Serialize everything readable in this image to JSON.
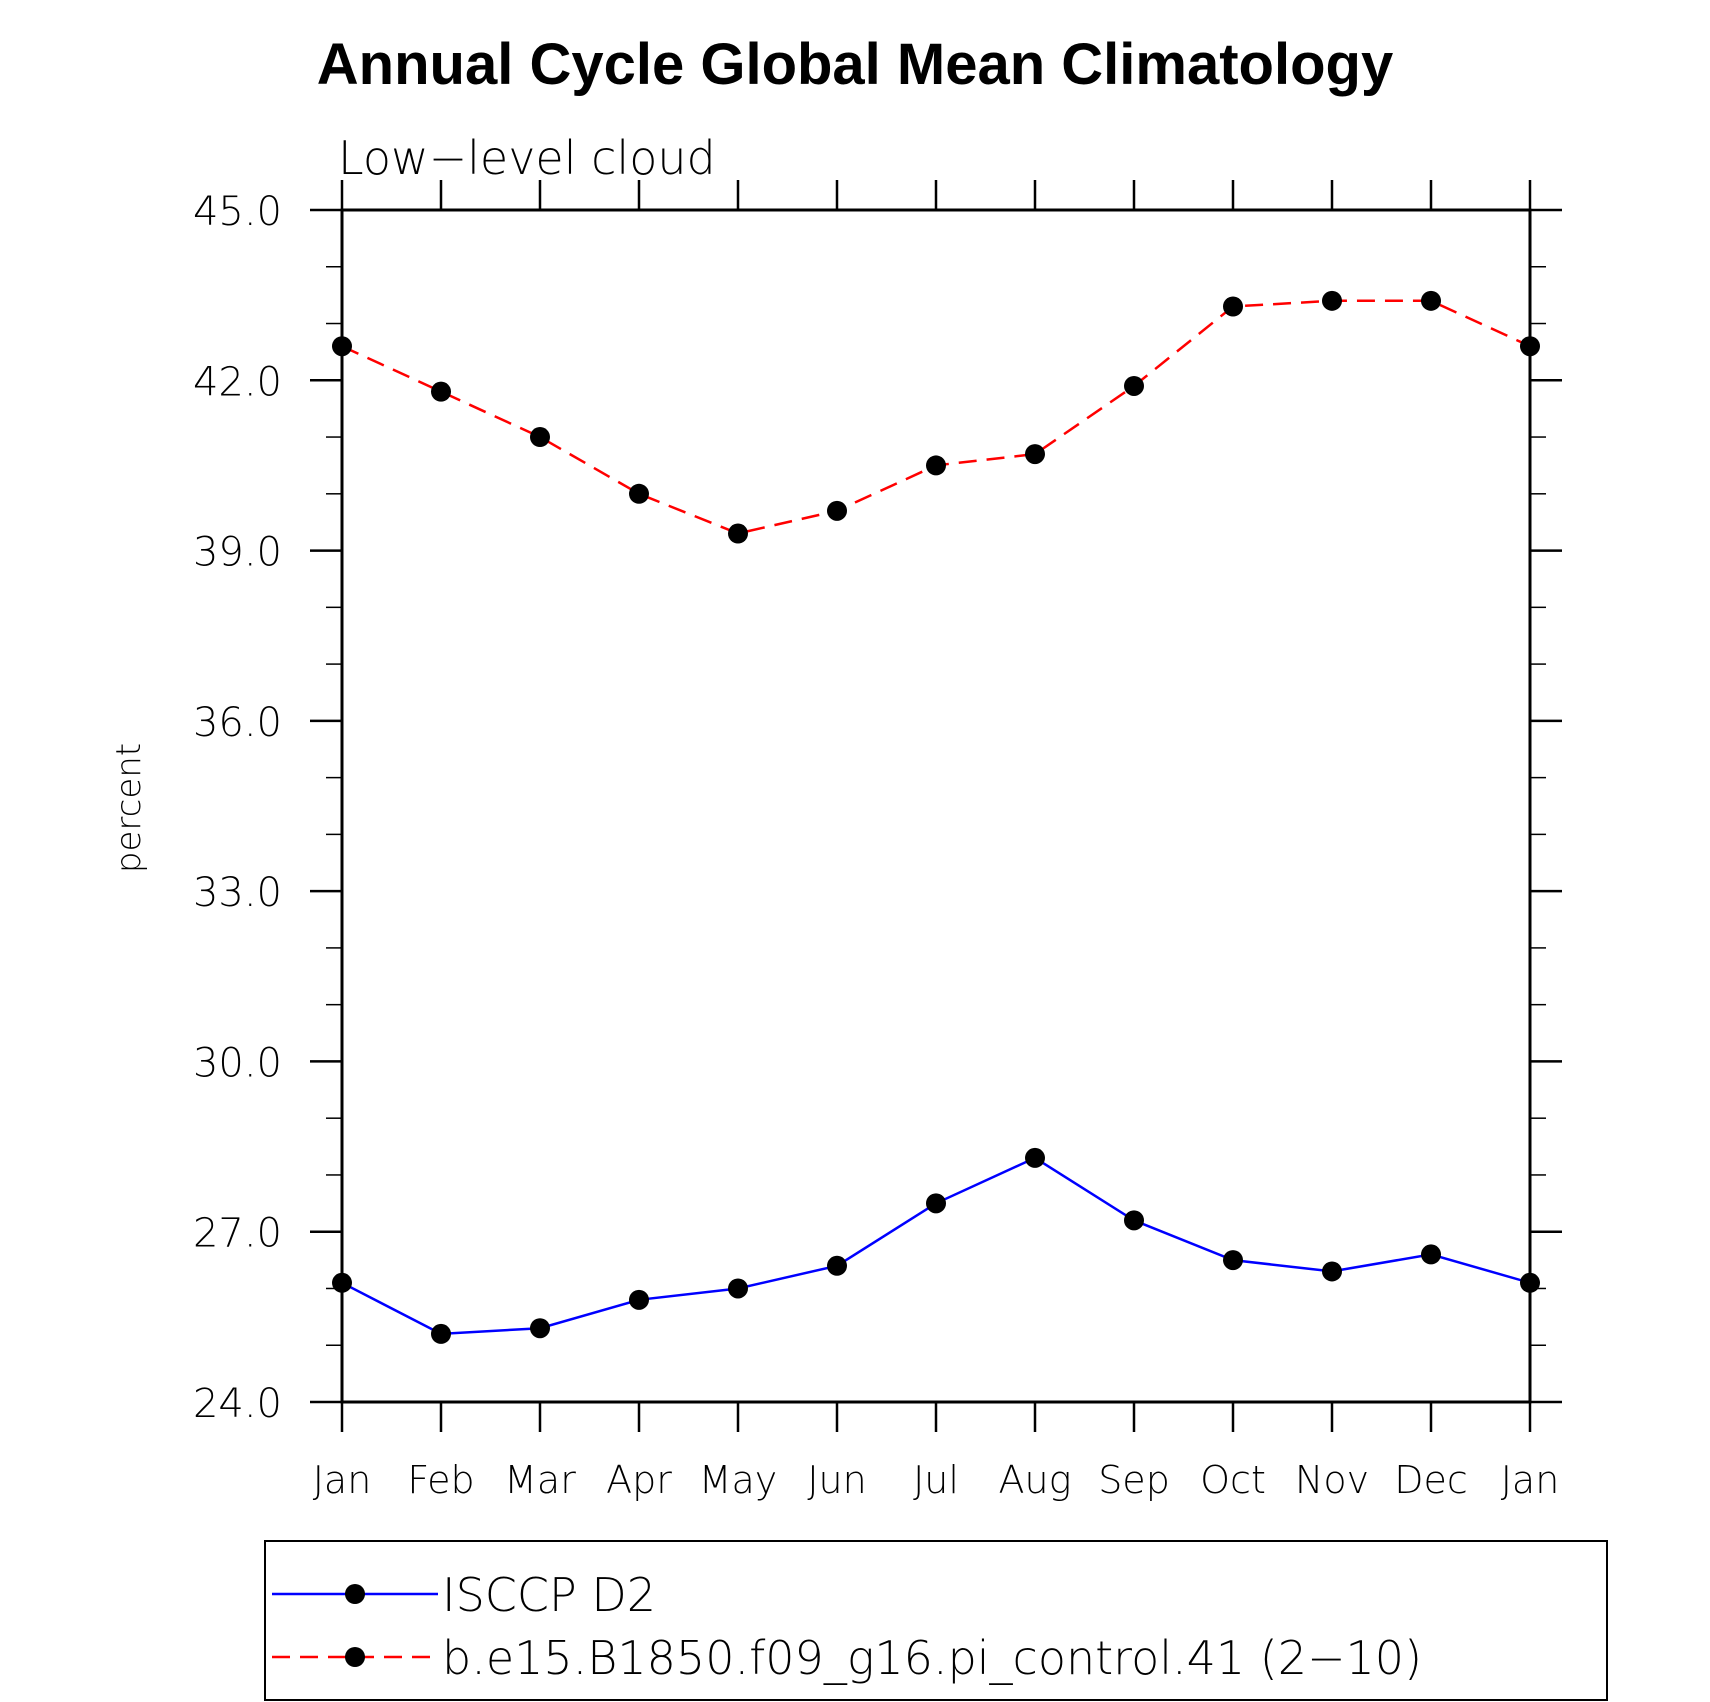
{
  "chart_data": {
    "type": "line",
    "title": "Annual Cycle Global Mean Climatology",
    "subtitle": "Low−level cloud",
    "xlabel": "",
    "ylabel": "percent",
    "categories": [
      "Jan",
      "Feb",
      "Mar",
      "Apr",
      "May",
      "Jun",
      "Jul",
      "Aug",
      "Sep",
      "Oct",
      "Nov",
      "Dec",
      "Jan"
    ],
    "ylim": [
      24.0,
      45.0
    ],
    "yticks": [
      "24.0",
      "27.0",
      "30.0",
      "33.0",
      "36.0",
      "39.0",
      "42.0",
      "45.0"
    ],
    "grid": false,
    "legend_position": "bottom",
    "series": [
      {
        "name": "ISCCP D2",
        "color": "#0000ff",
        "dash": "solid",
        "marker": "filled-circle",
        "values": [
          26.1,
          25.2,
          25.3,
          25.8,
          26.0,
          26.4,
          27.5,
          28.3,
          27.2,
          26.5,
          26.3,
          26.6,
          26.1
        ]
      },
      {
        "name": "b.e15.B1850.f09_g16.pi_control.41 (2−10)",
        "color": "#ff0000",
        "dash": "dashed",
        "marker": "filled-circle",
        "values": [
          42.6,
          41.8,
          41.0,
          40.0,
          39.3,
          39.7,
          40.5,
          40.7,
          41.9,
          43.3,
          43.4,
          43.4,
          42.6
        ]
      }
    ]
  }
}
